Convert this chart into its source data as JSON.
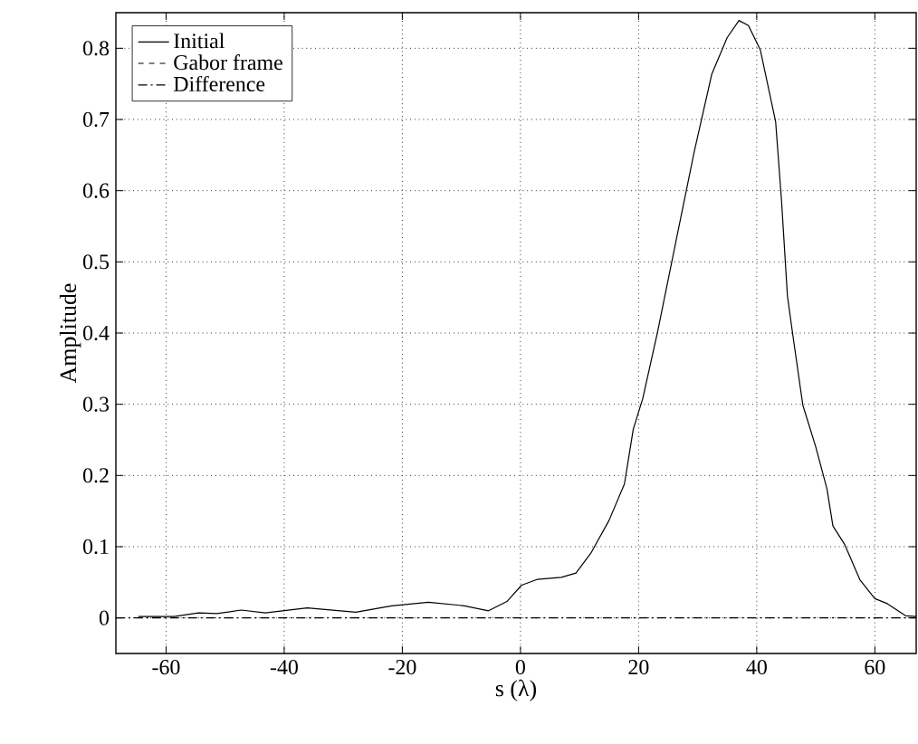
{
  "chart_data": {
    "type": "line",
    "xlabel": "s (λ)",
    "ylabel": "Amplitude",
    "xlim": [
      -68.5,
      67
    ],
    "ylim": [
      -0.05,
      0.85
    ],
    "xticks": [
      -60,
      -40,
      -20,
      0,
      20,
      40,
      60
    ],
    "yticks": [
      0,
      0.1,
      0.2,
      0.3,
      0.4,
      0.5,
      0.6,
      0.7,
      0.8
    ],
    "grid": true,
    "legend": "top left",
    "marker": "none",
    "series": [
      {
        "name": "Initial",
        "color": "#000000",
        "line_style": "solid",
        "x": [
          -64.7,
          -58.6,
          -54.5,
          -51.4,
          -47.3,
          -43.2,
          -36.1,
          -27.9,
          -21.8,
          -15.6,
          -9.5,
          -5.4,
          -2.3,
          0.2,
          2.8,
          6.9,
          9.4,
          12.0,
          15.0,
          17.6,
          19.1,
          20.7,
          23.2,
          26.3,
          29.4,
          32.4,
          35.0,
          37.0,
          38.6,
          40.6,
          43.2,
          44.2,
          45.2,
          46.2,
          47.8,
          50.0,
          51.9,
          52.9,
          54.9,
          57.5,
          60.0,
          62.1,
          65.2,
          67
        ],
        "values": [
          0.002,
          0.002,
          0.007,
          0.006,
          0.011,
          0.007,
          0.014,
          0.008,
          0.017,
          0.022,
          0.017,
          0.01,
          0.023,
          0.046,
          0.054,
          0.057,
          0.063,
          0.092,
          0.137,
          0.188,
          0.265,
          0.308,
          0.401,
          0.528,
          0.654,
          0.764,
          0.815,
          0.839,
          0.832,
          0.798,
          0.697,
          0.586,
          0.452,
          0.392,
          0.299,
          0.24,
          0.181,
          0.129,
          0.103,
          0.053,
          0.027,
          0.02,
          0.003,
          0.002
        ]
      },
      {
        "name": "Gabor frame",
        "color": "#000000",
        "line_style": "dashed"
      },
      {
        "name": "Difference",
        "color": "#000000",
        "line_style": "dashdot",
        "x": [
          -68.5,
          67
        ],
        "values": [
          0,
          0
        ]
      }
    ]
  }
}
